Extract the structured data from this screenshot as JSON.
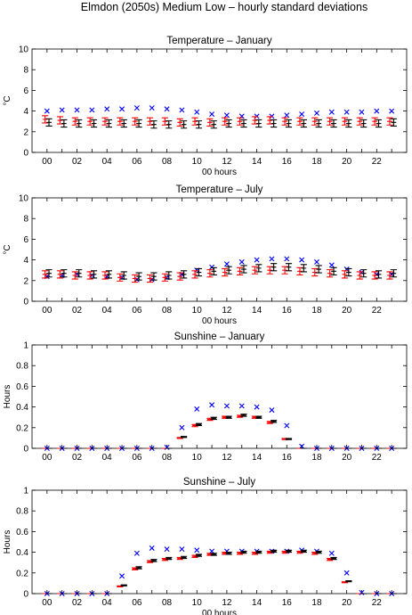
{
  "figure_title": "Elmdon (2050s) Medium Low – hourly standard deviations",
  "colors": {
    "observed": "#0000ff",
    "model_red": "#ff0000",
    "model_black": "#000000"
  },
  "chart_data": [
    {
      "type": "scatter",
      "title": "Temperature – January",
      "xlabel": "00 hours",
      "ylabel": "°C",
      "ylim": [
        0,
        10
      ],
      "yticks": [
        "0",
        "2",
        "4",
        "6",
        "8",
        "10"
      ],
      "xlim": [
        -1,
        24
      ],
      "xticks": [
        "00",
        "02",
        "04",
        "06",
        "08",
        "10",
        "12",
        "14",
        "16",
        "18",
        "20",
        "22"
      ],
      "x": [
        0,
        1,
        2,
        3,
        4,
        5,
        6,
        7,
        8,
        9,
        10,
        11,
        12,
        13,
        14,
        15,
        16,
        17,
        18,
        19,
        20,
        21,
        22,
        23
      ],
      "series": [
        {
          "marker": "x",
          "color": "#0000ff",
          "values": [
            4.0,
            4.1,
            4.1,
            4.1,
            4.2,
            4.2,
            4.3,
            4.3,
            4.2,
            4.1,
            3.9,
            3.7,
            3.6,
            3.5,
            3.5,
            3.5,
            3.6,
            3.7,
            3.8,
            3.9,
            3.9,
            3.9,
            4.0,
            4.0
          ]
        },
        {
          "marker": "errorbar",
          "color": "#ff0000",
          "values": [
            3.2,
            3.1,
            3.0,
            3.0,
            3.0,
            3.0,
            3.0,
            3.0,
            3.0,
            2.9,
            3.0,
            2.9,
            3.0,
            3.0,
            3.1,
            3.1,
            3.0,
            3.0,
            3.0,
            3.0,
            3.0,
            3.0,
            3.0,
            3.0
          ],
          "err": [
            0.35,
            0.35,
            0.35,
            0.35,
            0.35,
            0.35,
            0.35,
            0.35,
            0.35,
            0.35,
            0.35,
            0.35,
            0.35,
            0.35,
            0.35,
            0.35,
            0.35,
            0.35,
            0.35,
            0.35,
            0.35,
            0.35,
            0.35,
            0.35
          ]
        },
        {
          "marker": "errorbar",
          "color": "#000000",
          "values": [
            2.9,
            2.8,
            2.8,
            2.8,
            2.8,
            2.8,
            2.8,
            2.7,
            2.7,
            2.7,
            2.7,
            2.7,
            2.8,
            2.8,
            2.8,
            2.8,
            2.8,
            2.8,
            2.8,
            2.8,
            2.8,
            2.8,
            2.8,
            2.9
          ],
          "err": [
            0.35,
            0.35,
            0.35,
            0.35,
            0.35,
            0.35,
            0.35,
            0.35,
            0.35,
            0.35,
            0.35,
            0.35,
            0.35,
            0.35,
            0.35,
            0.35,
            0.35,
            0.35,
            0.35,
            0.35,
            0.35,
            0.35,
            0.35,
            0.35
          ]
        }
      ]
    },
    {
      "type": "scatter",
      "title": "Temperature – July",
      "xlabel": "00 hours",
      "ylabel": "°C",
      "ylim": [
        0,
        10
      ],
      "yticks": [
        "0",
        "2",
        "4",
        "6",
        "8",
        "10"
      ],
      "xlim": [
        -1,
        24
      ],
      "xticks": [
        "00",
        "02",
        "04",
        "06",
        "08",
        "10",
        "12",
        "14",
        "16",
        "18",
        "20",
        "22"
      ],
      "x": [
        0,
        1,
        2,
        3,
        4,
        5,
        6,
        7,
        8,
        9,
        10,
        11,
        12,
        13,
        14,
        15,
        16,
        17,
        18,
        19,
        20,
        21,
        22,
        23
      ],
      "series": [
        {
          "marker": "x",
          "color": "#0000ff",
          "values": [
            2.4,
            2.5,
            2.6,
            2.5,
            2.4,
            2.3,
            2.1,
            2.1,
            2.3,
            2.6,
            3.0,
            3.3,
            3.6,
            3.8,
            4.0,
            4.1,
            4.1,
            4.0,
            3.8,
            3.5,
            3.1,
            2.8,
            2.6,
            2.6
          ]
        },
        {
          "marker": "errorbar",
          "color": "#ff0000",
          "values": [
            2.6,
            2.6,
            2.5,
            2.5,
            2.5,
            2.3,
            2.2,
            2.2,
            2.3,
            2.4,
            2.6,
            2.7,
            2.8,
            2.9,
            3.0,
            3.0,
            3.0,
            2.9,
            2.8,
            2.7,
            2.6,
            2.5,
            2.5,
            2.5
          ],
          "err": [
            0.35,
            0.35,
            0.35,
            0.35,
            0.35,
            0.35,
            0.35,
            0.35,
            0.35,
            0.35,
            0.35,
            0.35,
            0.35,
            0.35,
            0.35,
            0.35,
            0.35,
            0.35,
            0.35,
            0.35,
            0.35,
            0.35,
            0.35,
            0.35
          ]
        },
        {
          "marker": "errorbar",
          "color": "#000000",
          "values": [
            2.7,
            2.7,
            2.7,
            2.6,
            2.6,
            2.5,
            2.4,
            2.4,
            2.5,
            2.6,
            2.8,
            2.9,
            3.0,
            3.1,
            3.2,
            3.3,
            3.3,
            3.2,
            3.1,
            2.9,
            2.8,
            2.7,
            2.6,
            2.7
          ],
          "err": [
            0.35,
            0.35,
            0.35,
            0.35,
            0.35,
            0.35,
            0.35,
            0.35,
            0.35,
            0.35,
            0.35,
            0.35,
            0.35,
            0.35,
            0.35,
            0.35,
            0.35,
            0.35,
            0.35,
            0.35,
            0.35,
            0.35,
            0.35,
            0.35
          ]
        }
      ]
    },
    {
      "type": "scatter",
      "title": "Sunshine – January",
      "xlabel": "",
      "ylabel": "Hours",
      "ylim": [
        0,
        1
      ],
      "yticks": [
        "0",
        "0.2",
        "0.4",
        "0.6",
        "0.8",
        "1"
      ],
      "xlim": [
        -1,
        24
      ],
      "xticks": [
        "00",
        "02",
        "04",
        "06",
        "08",
        "10",
        "12",
        "14",
        "16",
        "18",
        "20",
        "22"
      ],
      "x": [
        0,
        1,
        2,
        3,
        4,
        5,
        6,
        7,
        8,
        9,
        10,
        11,
        12,
        13,
        14,
        15,
        16,
        17,
        18,
        19,
        20,
        21,
        22,
        23
      ],
      "series": [
        {
          "marker": "x",
          "color": "#0000ff",
          "values": [
            0,
            0,
            0,
            0,
            0,
            0,
            0,
            0,
            0.01,
            0.2,
            0.38,
            0.42,
            0.41,
            0.41,
            0.4,
            0.37,
            0.22,
            0.02,
            0,
            0,
            0,
            0,
            0,
            0
          ]
        },
        {
          "marker": "errorbar",
          "color": "#ff0000",
          "values": [
            0,
            0,
            0,
            0,
            0,
            0,
            0,
            0,
            0,
            0.1,
            0.22,
            0.28,
            0.3,
            0.31,
            0.3,
            0.25,
            0.09,
            0,
            0,
            0,
            0,
            0,
            0,
            0
          ],
          "err": [
            0,
            0,
            0,
            0,
            0,
            0,
            0,
            0,
            0,
            0.005,
            0.01,
            0.01,
            0.01,
            0.01,
            0.01,
            0.01,
            0.005,
            0,
            0,
            0,
            0,
            0,
            0,
            0
          ]
        },
        {
          "marker": "errorbar",
          "color": "#000000",
          "values": [
            0,
            0,
            0,
            0,
            0,
            0,
            0,
            0,
            0,
            0.11,
            0.23,
            0.29,
            0.3,
            0.32,
            0.3,
            0.26,
            0.09,
            0,
            0,
            0,
            0,
            0,
            0,
            0
          ],
          "err": [
            0,
            0,
            0,
            0,
            0,
            0,
            0,
            0,
            0,
            0.005,
            0.01,
            0.01,
            0.01,
            0.01,
            0.01,
            0.01,
            0.005,
            0,
            0,
            0,
            0,
            0,
            0,
            0
          ]
        }
      ]
    },
    {
      "type": "scatter",
      "title": "Sunshine – July",
      "xlabel": "00 hours",
      "ylabel": "Hours",
      "ylim": [
        0,
        1
      ],
      "yticks": [
        "0",
        "0.2",
        "0.4",
        "0.6",
        "0.8",
        "1"
      ],
      "xlim": [
        -1,
        24
      ],
      "xticks": [
        "00",
        "02",
        "04",
        "06",
        "08",
        "10",
        "12",
        "14",
        "16",
        "18",
        "20",
        "22"
      ],
      "x": [
        0,
        1,
        2,
        3,
        4,
        5,
        6,
        7,
        8,
        9,
        10,
        11,
        12,
        13,
        14,
        15,
        16,
        17,
        18,
        19,
        20,
        21,
        22,
        23
      ],
      "series": [
        {
          "marker": "x",
          "color": "#0000ff",
          "values": [
            0,
            0,
            0,
            0,
            0,
            0.17,
            0.39,
            0.44,
            0.43,
            0.43,
            0.42,
            0.41,
            0.41,
            0.41,
            0.41,
            0.41,
            0.41,
            0.42,
            0.41,
            0.39,
            0.2,
            0.01,
            0,
            0
          ]
        },
        {
          "marker": "errorbar",
          "color": "#ff0000",
          "values": [
            0,
            0,
            0,
            0,
            0,
            0.07,
            0.24,
            0.31,
            0.33,
            0.34,
            0.36,
            0.38,
            0.39,
            0.39,
            0.39,
            0.4,
            0.4,
            0.4,
            0.39,
            0.33,
            0.11,
            0,
            0,
            0
          ],
          "err": [
            0,
            0,
            0,
            0,
            0,
            0.005,
            0.01,
            0.01,
            0.01,
            0.01,
            0.01,
            0.01,
            0.01,
            0.01,
            0.01,
            0.01,
            0.01,
            0.01,
            0.01,
            0.01,
            0.005,
            0,
            0,
            0
          ]
        },
        {
          "marker": "errorbar",
          "color": "#000000",
          "values": [
            0,
            0,
            0,
            0,
            0,
            0.08,
            0.25,
            0.32,
            0.34,
            0.35,
            0.37,
            0.38,
            0.39,
            0.4,
            0.4,
            0.41,
            0.41,
            0.41,
            0.4,
            0.34,
            0.12,
            0,
            0,
            0
          ],
          "err": [
            0,
            0,
            0,
            0,
            0,
            0.005,
            0.01,
            0.01,
            0.01,
            0.01,
            0.01,
            0.01,
            0.01,
            0.01,
            0.01,
            0.01,
            0.01,
            0.01,
            0.01,
            0.01,
            0.005,
            0,
            0,
            0
          ]
        }
      ]
    }
  ]
}
